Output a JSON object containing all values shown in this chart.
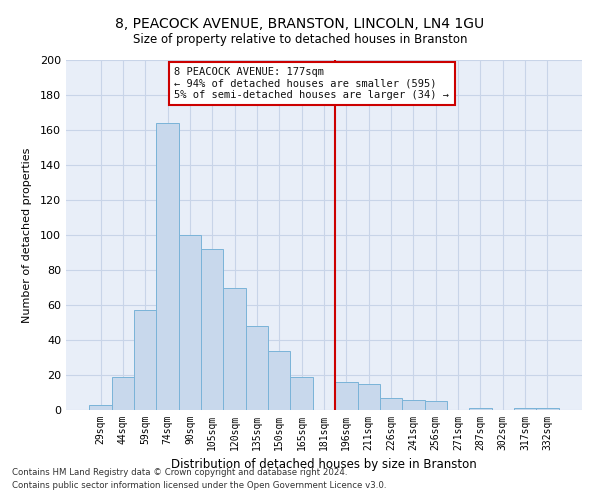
{
  "title": "8, PEACOCK AVENUE, BRANSTON, LINCOLN, LN4 1GU",
  "subtitle": "Size of property relative to detached houses in Branston",
  "xlabel": "Distribution of detached houses by size in Branston",
  "ylabel": "Number of detached properties",
  "categories": [
    "29sqm",
    "44sqm",
    "59sqm",
    "74sqm",
    "90sqm",
    "105sqm",
    "120sqm",
    "135sqm",
    "150sqm",
    "165sqm",
    "181sqm",
    "196sqm",
    "211sqm",
    "226sqm",
    "241sqm",
    "256sqm",
    "271sqm",
    "287sqm",
    "302sqm",
    "317sqm",
    "332sqm"
  ],
  "values": [
    3,
    19,
    57,
    164,
    100,
    92,
    70,
    48,
    34,
    19,
    0,
    16,
    15,
    7,
    6,
    5,
    0,
    1,
    0,
    1,
    1
  ],
  "bar_color": "#c8d8ec",
  "bar_edge_color": "#7ab3d8",
  "vline_color": "#cc0000",
  "annotation_text": "8 PEACOCK AVENUE: 177sqm\n← 94% of detached houses are smaller (595)\n5% of semi-detached houses are larger (34) →",
  "annotation_box_edge_color": "#cc0000",
  "ylim": [
    0,
    200
  ],
  "yticks": [
    0,
    20,
    40,
    60,
    80,
    100,
    120,
    140,
    160,
    180,
    200
  ],
  "grid_color": "#c8d4e8",
  "background_color": "#e8eef8",
  "footer1": "Contains HM Land Registry data © Crown copyright and database right 2024.",
  "footer2": "Contains public sector information licensed under the Open Government Licence v3.0.",
  "vline_pos": 10.5
}
